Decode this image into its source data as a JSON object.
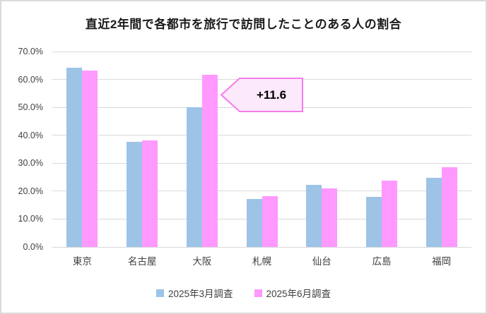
{
  "title": "直近2年間で各都市を旅行で訪問したことのある人の割合",
  "chart_data": {
    "type": "bar",
    "categories": [
      "東京",
      "名古屋",
      "大阪",
      "札幌",
      "仙台",
      "広島",
      "福岡"
    ],
    "series": [
      {
        "name": "2025年3月調査",
        "color": "#9DC3E6",
        "values": [
          64.1,
          37.6,
          50.0,
          17.1,
          22.2,
          18.0,
          24.8
        ]
      },
      {
        "name": "2025年6月調査",
        "color": "#FF99FF",
        "values": [
          63.2,
          38.2,
          61.6,
          18.1,
          21.1,
          23.7,
          28.6
        ]
      }
    ],
    "ylim": [
      0,
      70
    ],
    "yticks": [
      {
        "value": 0,
        "label": "0.0%"
      },
      {
        "value": 10,
        "label": "10.0%"
      },
      {
        "value": 20,
        "label": "20.0%"
      },
      {
        "value": 30,
        "label": "30.0%"
      },
      {
        "value": 40,
        "label": "40.0%"
      },
      {
        "value": 50,
        "label": "50.0%"
      },
      {
        "value": 60,
        "label": "60.0%"
      },
      {
        "value": 70,
        "label": "70.0%"
      }
    ],
    "grid": true,
    "legend_position": "bottom",
    "annotation": {
      "text": "+11.6",
      "points_to_category": "大阪",
      "fill": "#FCE9FB",
      "border": "#F57CEB"
    },
    "colors": {
      "gridline": "#D9D9D9",
      "axis_text": "#404040",
      "title_text": "#1A1A1A"
    }
  }
}
